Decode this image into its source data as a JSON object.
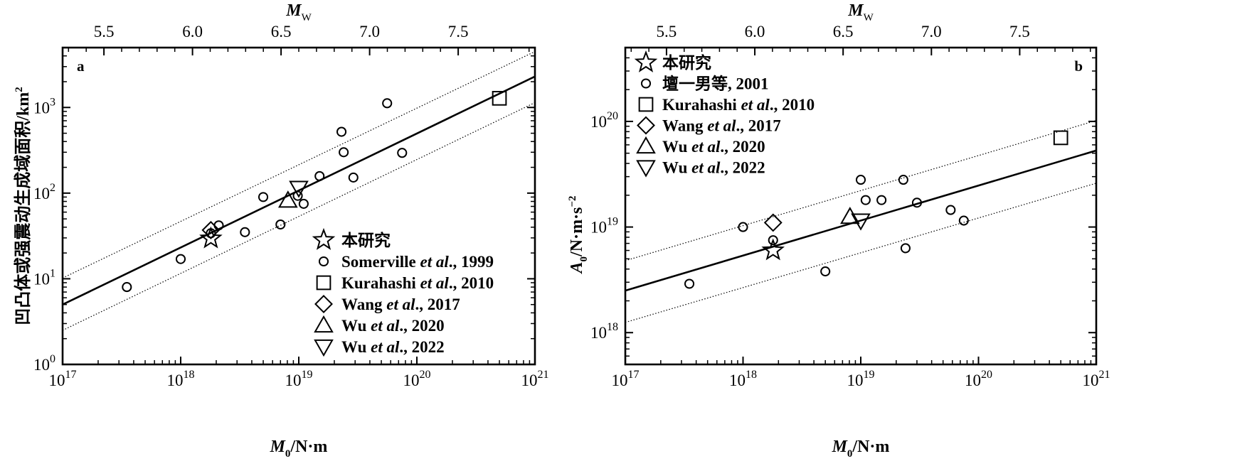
{
  "chart_data": [
    {
      "panel_label": "a",
      "type": "scatter",
      "xscale": "log",
      "yscale": "log",
      "xlim": [
        1e+17,
        1e+21
      ],
      "ylim": [
        1,
        5000
      ],
      "xlabel": "M0/N·m",
      "ylabel": "凹凸体或强震动生成域面积/km²",
      "top_axis_label": "MW",
      "x_ticks": [
        {
          "v": 1e+17,
          "base": "10",
          "exp": "17"
        },
        {
          "v": 1e+18,
          "base": "10",
          "exp": "18"
        },
        {
          "v": 1e+19,
          "base": "10",
          "exp": "19"
        },
        {
          "v": 1e+20,
          "base": "10",
          "exp": "20"
        },
        {
          "v": 1e+21,
          "base": "10",
          "exp": "21"
        }
      ],
      "y_ticks": [
        {
          "v": 1,
          "base": "10",
          "exp": "0"
        },
        {
          "v": 10,
          "base": "10",
          "exp": "1"
        },
        {
          "v": 100,
          "base": "10",
          "exp": "2"
        },
        {
          "v": 1000,
          "base": "10",
          "exp": "3"
        }
      ],
      "top_ticks": [
        "5.5",
        "6.0",
        "6.5",
        "7.0",
        "7.5"
      ],
      "fit_lines": [
        {
          "style": "solid",
          "x": [
            1e+17,
            1e+21
          ],
          "y": [
            5.0,
            2300
          ]
        },
        {
          "style": "dotted",
          "x": [
            1e+17,
            1e+21
          ],
          "y": [
            10.2,
            4500
          ]
        },
        {
          "style": "dotted",
          "x": [
            1e+17,
            1e+21
          ],
          "y": [
            2.5,
            1140
          ]
        }
      ],
      "series": [
        {
          "name": "本研究",
          "marker": "star",
          "points": [
            [
              1.8e+18,
              29.5
            ]
          ]
        },
        {
          "name": "Somerville et al., 1999",
          "marker": "circle",
          "points": [
            [
              3.5e+17,
              8
            ],
            [
              1e+18,
              17
            ],
            [
              1.8e+18,
              34
            ],
            [
              2.1e+18,
              42
            ],
            [
              3.5e+18,
              35
            ],
            [
              5e+18,
              90
            ],
            [
              7e+18,
              43
            ],
            [
              9.8e+18,
              93
            ],
            [
              1.1e+19,
              75
            ],
            [
              1.5e+19,
              158
            ],
            [
              2.3e+19,
              520
            ],
            [
              2.4e+19,
              300
            ],
            [
              2.9e+19,
              152
            ],
            [
              5.6e+19,
              1120
            ],
            [
              7.5e+19,
              295
            ]
          ]
        },
        {
          "name": "Kurahashi et al., 2010",
          "marker": "square",
          "points": [
            [
              5e+20,
              1280
            ]
          ]
        },
        {
          "name": "Wang et al., 2017",
          "marker": "diamond",
          "points": [
            [
              1.8e+18,
              37
            ]
          ]
        },
        {
          "name": "Wu et al., 2020",
          "marker": "triangle-up",
          "points": [
            [
              8.1e+18,
              82
            ]
          ]
        },
        {
          "name": "Wu et al., 2022",
          "marker": "triangle-down",
          "points": [
            [
              1e+19,
              115
            ]
          ]
        }
      ],
      "legend_position": "bottom-right"
    },
    {
      "panel_label": "b",
      "type": "scatter",
      "xscale": "log",
      "yscale": "log",
      "xlim": [
        1e+17,
        1e+21
      ],
      "ylim": [
        5e+17,
        5e+20
      ],
      "xlabel": "M0/N·m",
      "ylabel": "A0/N·m·s⁻²",
      "top_axis_label": "MW",
      "x_ticks": [
        {
          "v": 1e+17,
          "base": "10",
          "exp": "17"
        },
        {
          "v": 1e+18,
          "base": "10",
          "exp": "18"
        },
        {
          "v": 1e+19,
          "base": "10",
          "exp": "19"
        },
        {
          "v": 1e+20,
          "base": "10",
          "exp": "20"
        },
        {
          "v": 1e+21,
          "base": "10",
          "exp": "21"
        }
      ],
      "y_ticks": [
        {
          "v": 1e+18,
          "base": "10",
          "exp": "18"
        },
        {
          "v": 1e+19,
          "base": "10",
          "exp": "19"
        },
        {
          "v": 1e+20,
          "base": "10",
          "exp": "20"
        }
      ],
      "top_ticks": [
        "5.5",
        "6.0",
        "6.5",
        "7.0",
        "7.5"
      ],
      "fit_lines": [
        {
          "style": "solid",
          "x": [
            1e+17,
            1e+21
          ],
          "y": [
            2.5e+18,
            5.3e+19
          ]
        },
        {
          "style": "dotted",
          "x": [
            1e+17,
            1e+21
          ],
          "y": [
            4.8e+18,
            1.02e+20
          ]
        },
        {
          "style": "dotted",
          "x": [
            1e+17,
            1e+21
          ],
          "y": [
            1.25e+18,
            2.6e+19
          ]
        }
      ],
      "series": [
        {
          "name": "本研究",
          "marker": "star",
          "points": [
            [
              1.8e+18,
              6e+18
            ]
          ]
        },
        {
          "name": "壇一男等, 2001",
          "marker": "circle",
          "points": [
            [
              3.5e+17,
              2.9e+18
            ],
            [
              1e+18,
              1e+19
            ],
            [
              1.8e+18,
              7.5e+18
            ],
            [
              5e+18,
              3.8e+18
            ],
            [
              1e+19,
              2.8e+19
            ],
            [
              1.1e+19,
              1.8e+19
            ],
            [
              1.5e+19,
              1.8e+19
            ],
            [
              2.3e+19,
              2.8e+19
            ],
            [
              2.4e+19,
              6.3e+18
            ],
            [
              3e+19,
              1.7e+19
            ],
            [
              5.8e+19,
              1.45e+19
            ],
            [
              7.5e+19,
              1.15e+19
            ]
          ]
        },
        {
          "name": "Kurahashi et al., 2010",
          "marker": "square",
          "points": [
            [
              5e+20,
              7e+19
            ]
          ]
        },
        {
          "name": "Wang et al., 2017",
          "marker": "diamond",
          "points": [
            [
              1.8e+18,
              1.1e+19
            ]
          ]
        },
        {
          "name": "Wu et al., 2020",
          "marker": "triangle-up",
          "points": [
            [
              8.1e+18,
              1.25e+19
            ]
          ]
        },
        {
          "name": "Wu et al., 2022",
          "marker": "triangle-down",
          "points": [
            [
              1e+19,
              1.15e+19
            ]
          ]
        }
      ],
      "legend_position": "top-left"
    }
  ],
  "labels": {
    "top_axis": {
      "main": "M",
      "sub": "W"
    },
    "x_axis": {
      "main": "M",
      "sub": "0",
      "rest": "/N·m"
    },
    "y_axis_a": "凹凸体或强震动生成域面积/km",
    "y_axis_a_sup": "2",
    "y_axis_b": {
      "main": "A",
      "sub": "0",
      "rest": "/N·m·s",
      "sup": "−2"
    }
  },
  "legend_a": [
    {
      "marker": "star",
      "text": "本研究",
      "prefix": "",
      "italic": "",
      "suffix": ""
    },
    {
      "marker": "circle",
      "text": "",
      "prefix": "Somerville ",
      "italic": "et al",
      "suffix": "., 1999"
    },
    {
      "marker": "square",
      "text": "",
      "prefix": "Kurahashi ",
      "italic": "et al",
      "suffix": "., 2010"
    },
    {
      "marker": "diamond",
      "text": "",
      "prefix": "Wang ",
      "italic": "et al",
      "suffix": "., 2017"
    },
    {
      "marker": "triangle-up",
      "text": "",
      "prefix": "Wu ",
      "italic": "et al",
      "suffix": "., 2020"
    },
    {
      "marker": "triangle-down",
      "text": "",
      "prefix": "Wu ",
      "italic": "et al",
      "suffix": "., 2022"
    }
  ],
  "legend_b": [
    {
      "marker": "star",
      "text": "本研究",
      "prefix": "",
      "italic": "",
      "suffix": ""
    },
    {
      "marker": "circle",
      "text": "壇一男等, 2001",
      "prefix": "",
      "italic": "",
      "suffix": ""
    },
    {
      "marker": "square",
      "text": "",
      "prefix": "Kurahashi ",
      "italic": "et al",
      "suffix": "., 2010"
    },
    {
      "marker": "diamond",
      "text": "",
      "prefix": "Wang ",
      "italic": "et al",
      "suffix": "., 2017"
    },
    {
      "marker": "triangle-up",
      "text": "",
      "prefix": "Wu ",
      "italic": "et al",
      "suffix": "., 2020"
    },
    {
      "marker": "triangle-down",
      "text": "",
      "prefix": "Wu ",
      "italic": "et al",
      "suffix": "., 2022"
    }
  ],
  "colors": {
    "ink": "#000000",
    "background": "#ffffff"
  }
}
